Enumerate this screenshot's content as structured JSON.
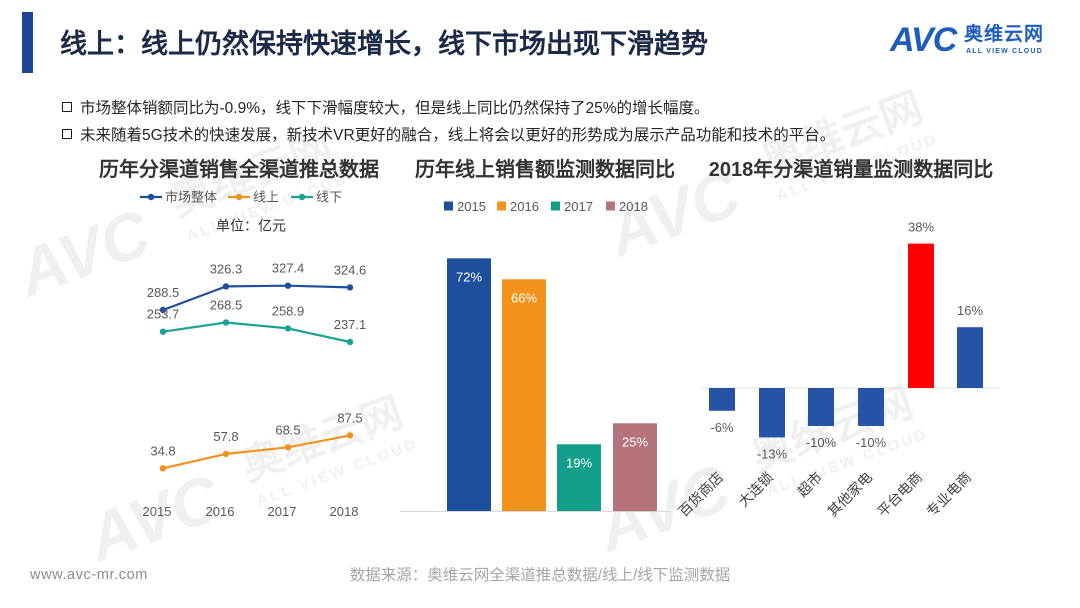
{
  "header": {
    "title": "线上：线上仍然保持快速增长，线下市场出现下滑趋势"
  },
  "logo": {
    "mark": "AVC",
    "cn": "奥维云网",
    "en": "ALL VIEW CLOUD"
  },
  "watermark": {
    "mark": "AVC",
    "cn": "奥维云网",
    "en": "ALL VIEW CLOUD"
  },
  "colors": {
    "accent": "#1E4595",
    "title": "#1C2A48",
    "logo": "#1F5DBA"
  },
  "bullets": [
    "市场整体销额同比为-0.9%，线下下滑幅度较大，但是线上同比仍然保持了25%的增长幅度。",
    "未来随着5G技术的快速发展，新技术VR更好的融合，线上将会以更好的形势成为展示产品功能和技术的平台。"
  ],
  "chart_data": [
    {
      "type": "line",
      "title": "历年分渠道销售全渠道推总数据",
      "unit": "单位：亿元",
      "categories": [
        "2015",
        "2016",
        "2017",
        "2018"
      ],
      "series": [
        {
          "name": "市场整体",
          "values": [
            288.5,
            326.3,
            327.4,
            324.6
          ],
          "color": "#1E4F9C"
        },
        {
          "name": "线上",
          "values": [
            34.8,
            57.8,
            68.5,
            87.5
          ],
          "color": "#F2921D"
        },
        {
          "name": "线下",
          "values": [
            253.7,
            268.5,
            258.9,
            237.1
          ],
          "color": "#1AA394"
        }
      ],
      "ylim": [
        0,
        350
      ],
      "grid": false,
      "legend": "top"
    },
    {
      "type": "bar",
      "title": "历年线上销售额监测数据同比",
      "categories": [
        "2015",
        "2016",
        "2017",
        "2018"
      ],
      "values": [
        72,
        66,
        19,
        25
      ],
      "value_labels": [
        "72%",
        "66%",
        "19%",
        "25%"
      ],
      "colors": [
        "#1E4F9C",
        "#F2921D",
        "#129E88",
        "#B6737B"
      ],
      "ylim": [
        0,
        80
      ],
      "grid": false,
      "legend": "top"
    },
    {
      "type": "bar",
      "title": "2018年分渠道销量监测数据同比",
      "categories": [
        "百货商店",
        "大连锁",
        "超市",
        "其他家电",
        "平台电商",
        "专业电商"
      ],
      "values": [
        -6,
        -13,
        -10,
        -10,
        38,
        16
      ],
      "value_labels": [
        "-6%",
        "-13%",
        "-10%",
        "-10%",
        "38%",
        "16%"
      ],
      "colors": [
        "#2553A8",
        "#2553A8",
        "#2553A8",
        "#2553A8",
        "#FF0000",
        "#2553A8"
      ],
      "ylim": [
        -20,
        40
      ],
      "grid": false
    }
  ],
  "footer": {
    "website": "www.avc-mr.com",
    "source": "数据来源：奥维云网全渠道推总数据/线上/线下监测数据"
  }
}
